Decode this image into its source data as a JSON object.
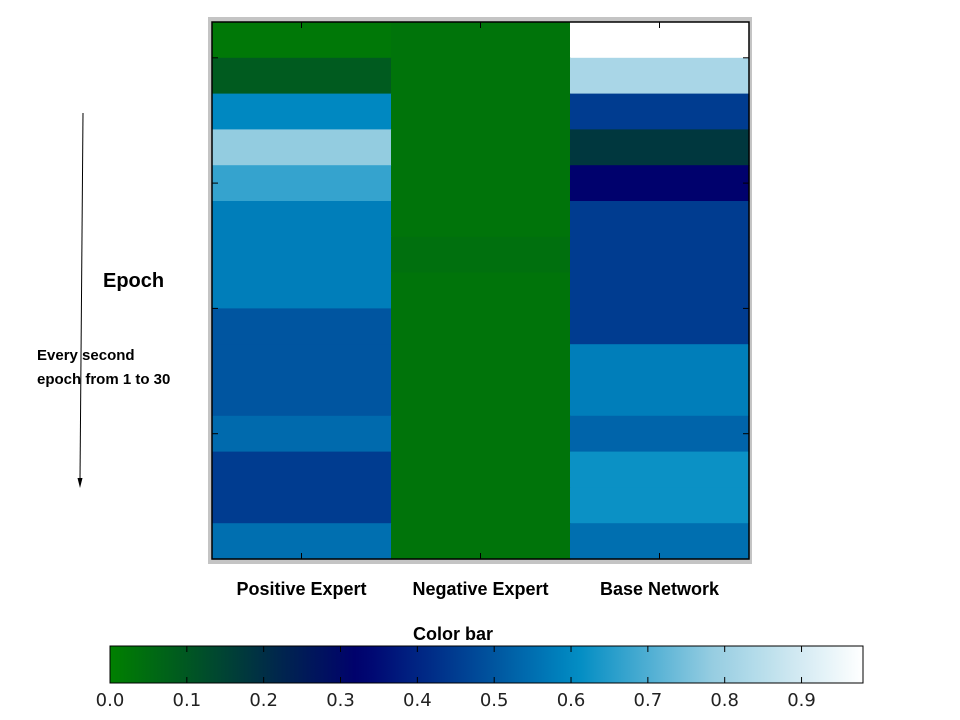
{
  "chart_data": {
    "type": "heatmap",
    "title": "",
    "row_axis": {
      "label": "Epoch",
      "note_lines": [
        "Every second",
        "epoch from 1 to 30"
      ]
    },
    "columns": [
      "Positive Expert",
      "Negative Expert",
      "Base Network"
    ],
    "row_count": 15,
    "values": [
      [
        0.02,
        0.03,
        1.0
      ],
      [
        0.09,
        0.03,
        0.82
      ],
      [
        0.6,
        0.03,
        0.45
      ],
      [
        0.78,
        0.03,
        0.18
      ],
      [
        0.67,
        0.03,
        0.32
      ],
      [
        0.58,
        0.03,
        0.45
      ],
      [
        0.58,
        0.04,
        0.45
      ],
      [
        0.58,
        0.03,
        0.45
      ],
      [
        0.5,
        0.03,
        0.45
      ],
      [
        0.5,
        0.03,
        0.58
      ],
      [
        0.5,
        0.03,
        0.58
      ],
      [
        0.54,
        0.03,
        0.53
      ],
      [
        0.45,
        0.03,
        0.62
      ],
      [
        0.45,
        0.03,
        0.62
      ],
      [
        0.55,
        0.03,
        0.55
      ]
    ],
    "colorbar": {
      "title": "Color bar",
      "range": [
        0.0,
        0.98
      ],
      "ticks": [
        "0.0",
        "0.1",
        "0.2",
        "0.3",
        "0.4",
        "0.5",
        "0.6",
        "0.7",
        "0.8",
        "0.9"
      ],
      "colormap": "ocean_r"
    }
  }
}
